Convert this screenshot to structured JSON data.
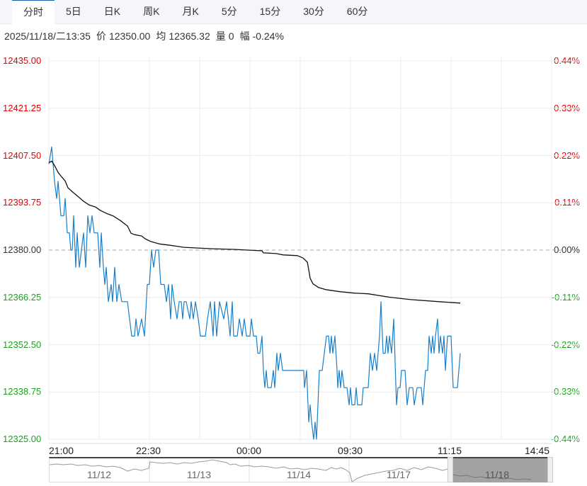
{
  "tabs": [
    {
      "label": "分时",
      "active": true
    },
    {
      "label": "5日"
    },
    {
      "label": "日K"
    },
    {
      "label": "周K"
    },
    {
      "label": "月K"
    },
    {
      "label": "5分"
    },
    {
      "label": "15分"
    },
    {
      "label": "30分"
    },
    {
      "label": "60分"
    }
  ],
  "info": {
    "datetime": "2025/11/18/二13:35",
    "price_label": "价",
    "price": "12350.00",
    "avg_label": "均",
    "avg": "12365.32",
    "vol_label": "量",
    "vol": "0",
    "chg_label": "幅",
    "chg": "-0.24%"
  },
  "colors": {
    "up": "#e60000",
    "down": "#1aa31a",
    "price_line": "#1a7fc9",
    "avg_line": "#111111"
  },
  "chart_data": {
    "type": "line",
    "prev_close": 12380.0,
    "ylim": [
      12325.0,
      12435.0
    ],
    "y_ticks": [
      "12435.00",
      "12421.25",
      "12407.50",
      "12393.75",
      "12380.00",
      "12366.25",
      "12352.50",
      "12338.75",
      "12325.00"
    ],
    "pct_ticks": [
      "0.44%",
      "0.33%",
      "0.22%",
      "0.11%",
      "0.00%",
      "-0.11%",
      "-0.22%",
      "-0.33%",
      "-0.44%"
    ],
    "x_ticks": [
      "21:00",
      "22:30",
      "00:00",
      "09:30",
      "11:15",
      "14:45"
    ],
    "x_domain": [
      0,
      710
    ],
    "series": [
      {
        "name": "价",
        "points": [
          [
            0,
            12405
          ],
          [
            4,
            12410
          ],
          [
            6,
            12405
          ],
          [
            8,
            12400
          ],
          [
            11,
            12395
          ],
          [
            13,
            12400
          ],
          [
            15,
            12395
          ],
          [
            17,
            12390
          ],
          [
            21,
            12390
          ],
          [
            23,
            12395
          ],
          [
            26,
            12385
          ],
          [
            29,
            12385
          ],
          [
            31,
            12380
          ],
          [
            33,
            12380
          ],
          [
            35,
            12390
          ],
          [
            38,
            12375
          ],
          [
            40,
            12385
          ],
          [
            43,
            12375
          ],
          [
            46,
            12380
          ],
          [
            49,
            12385
          ],
          [
            52,
            12375
          ],
          [
            55,
            12390
          ],
          [
            58,
            12385
          ],
          [
            61,
            12390
          ],
          [
            64,
            12385
          ],
          [
            69,
            12385
          ],
          [
            72,
            12375
          ],
          [
            74,
            12385
          ],
          [
            77,
            12375
          ],
          [
            79,
            12370
          ],
          [
            81,
            12375
          ],
          [
            84,
            12365
          ],
          [
            88,
            12370
          ],
          [
            90,
            12365
          ],
          [
            93,
            12375
          ],
          [
            96,
            12365
          ],
          [
            99,
            12370
          ],
          [
            103,
            12365
          ],
          [
            111,
            12365
          ],
          [
            114,
            12360
          ],
          [
            117,
            12355
          ],
          [
            121,
            12355
          ],
          [
            123,
            12360
          ],
          [
            126,
            12355
          ],
          [
            131,
            12360
          ],
          [
            135,
            12355
          ],
          [
            139,
            12370
          ],
          [
            142,
            12370
          ],
          [
            145,
            12380
          ],
          [
            148,
            12375
          ],
          [
            151,
            12380
          ],
          [
            155,
            12380
          ],
          [
            158,
            12370
          ],
          [
            163,
            12370
          ],
          [
            166,
            12365
          ],
          [
            169,
            12370
          ],
          [
            172,
            12360
          ],
          [
            174,
            12370
          ],
          [
            177,
            12365
          ],
          [
            181,
            12360
          ],
          [
            184,
            12365
          ],
          [
            187,
            12365
          ],
          [
            189,
            12360
          ],
          [
            191,
            12365
          ],
          [
            194,
            12365
          ],
          [
            199,
            12360
          ],
          [
            201,
            12365
          ],
          [
            204,
            12360
          ],
          [
            207,
            12365
          ],
          [
            211,
            12360
          ],
          [
            214,
            12355
          ],
          [
            221,
            12355
          ],
          [
            224,
            12360
          ],
          [
            228,
            12365
          ],
          [
            232,
            12355
          ],
          [
            234,
            12365
          ],
          [
            237,
            12355
          ],
          [
            241,
            12365
          ],
          [
            247,
            12360
          ],
          [
            251,
            12365
          ],
          [
            256,
            12355
          ],
          [
            259,
            12365
          ],
          [
            261,
            12355
          ],
          [
            266,
            12355
          ],
          [
            269,
            12360
          ],
          [
            273,
            12355
          ],
          [
            276,
            12360
          ],
          [
            279,
            12355
          ],
          [
            284,
            12355
          ],
          [
            286,
            12360
          ],
          [
            289,
            12355
          ],
          [
            293,
            12355
          ],
          [
            295,
            12350
          ],
          [
            298,
            12350
          ],
          [
            301,
            12355
          ],
          [
            303,
            12345
          ],
          [
            305,
            12340
          ],
          [
            307,
            12345
          ],
          [
            309,
            12340
          ],
          [
            314,
            12340
          ],
          [
            317,
            12345
          ],
          [
            319,
            12340
          ],
          [
            322,
            12350
          ],
          [
            324,
            12345
          ],
          [
            327,
            12350
          ],
          [
            330,
            12345
          ],
          [
            334,
            12345
          ],
          [
            360,
            12345
          ],
          [
            361,
            12340
          ],
          [
            364,
            12345
          ],
          [
            367,
            12330
          ],
          [
            369,
            12335
          ],
          [
            371,
            12330
          ],
          [
            374,
            12325
          ],
          [
            376,
            12330
          ],
          [
            378,
            12325
          ],
          [
            380,
            12335
          ],
          [
            382,
            12345
          ],
          [
            386,
            12345
          ],
          [
            389,
            12350
          ],
          [
            392,
            12355
          ],
          [
            395,
            12355
          ],
          [
            397,
            12350
          ],
          [
            399,
            12355
          ],
          [
            401,
            12350
          ],
          [
            404,
            12355
          ],
          [
            407,
            12345
          ],
          [
            408,
            12340
          ],
          [
            410,
            12345
          ],
          [
            412,
            12340
          ],
          [
            414,
            12345
          ],
          [
            417,
            12340
          ],
          [
            421,
            12340
          ],
          [
            424,
            12335
          ],
          [
            426,
            12340
          ],
          [
            428,
            12335
          ],
          [
            432,
            12335
          ],
          [
            434,
            12340
          ],
          [
            436,
            12335
          ],
          [
            442,
            12335
          ],
          [
            444,
            12340
          ],
          [
            451,
            12340
          ],
          [
            454,
            12350
          ],
          [
            457,
            12345
          ],
          [
            460,
            12350
          ],
          [
            463,
            12345
          ],
          [
            467,
            12355
          ],
          [
            469,
            12365
          ],
          [
            472,
            12350
          ],
          [
            475,
            12350
          ],
          [
            477,
            12355
          ],
          [
            479,
            12350
          ],
          [
            481,
            12355
          ],
          [
            484,
            12350
          ],
          [
            487,
            12360
          ],
          [
            491,
            12335
          ],
          [
            493,
            12340
          ],
          [
            496,
            12340
          ],
          [
            498,
            12345
          ],
          [
            503,
            12345
          ],
          [
            506,
            12335
          ],
          [
            509,
            12340
          ],
          [
            514,
            12340
          ],
          [
            516,
            12335
          ],
          [
            520,
            12340
          ],
          [
            526,
            12340
          ],
          [
            528,
            12335
          ],
          [
            530,
            12340
          ],
          [
            532,
            12345
          ],
          [
            535,
            12345
          ],
          [
            537,
            12355
          ],
          [
            540,
            12350
          ],
          [
            542,
            12355
          ],
          [
            544,
            12350
          ],
          [
            546,
            12355
          ],
          [
            549,
            12360
          ],
          [
            551,
            12350
          ],
          [
            553,
            12355
          ],
          [
            556,
            12350
          ],
          [
            558,
            12355
          ],
          [
            560,
            12345
          ],
          [
            563,
            12355
          ],
          [
            568,
            12355
          ],
          [
            571,
            12340
          ],
          [
            577,
            12340
          ],
          [
            581,
            12350
          ]
        ]
      },
      {
        "name": "均",
        "points": [
          [
            0,
            12405.4
          ],
          [
            4,
            12405.9
          ],
          [
            8,
            12404.6
          ],
          [
            13,
            12402.6
          ],
          [
            18,
            12401.3
          ],
          [
            23,
            12400.1
          ],
          [
            27,
            12398.1
          ],
          [
            34,
            12396.8
          ],
          [
            41,
            12395.6
          ],
          [
            49,
            12394.2
          ],
          [
            57,
            12393.1
          ],
          [
            66,
            12392.5
          ],
          [
            73,
            12391.5
          ],
          [
            81,
            12390.7
          ],
          [
            91,
            12389.9
          ],
          [
            101,
            12388.6
          ],
          [
            111,
            12387.0
          ],
          [
            116,
            12384.9
          ],
          [
            121,
            12384.5
          ],
          [
            131,
            12384.1
          ],
          [
            136,
            12383.3
          ],
          [
            144,
            12382.5
          ],
          [
            156,
            12381.8
          ],
          [
            171,
            12381.4
          ],
          [
            191,
            12380.8
          ],
          [
            211,
            12380.6
          ],
          [
            231,
            12380.4
          ],
          [
            261,
            12380.2
          ],
          [
            281,
            12380.0
          ],
          [
            301,
            12379.8
          ],
          [
            303,
            12379.2
          ],
          [
            321,
            12379.0
          ],
          [
            331,
            12378.6
          ],
          [
            351,
            12378.4
          ],
          [
            359,
            12377.7
          ],
          [
            365,
            12376.5
          ],
          [
            367,
            12374.3
          ],
          [
            369,
            12371.8
          ],
          [
            373,
            12370.2
          ],
          [
            381,
            12369.1
          ],
          [
            391,
            12368.5
          ],
          [
            411,
            12367.9
          ],
          [
            431,
            12367.5
          ],
          [
            451,
            12367.3
          ],
          [
            481,
            12366.3
          ],
          [
            511,
            12365.6
          ],
          [
            551,
            12365.0
          ],
          [
            581,
            12364.6
          ]
        ]
      }
    ]
  },
  "navigator": {
    "dates": [
      "11/12",
      "11/13",
      "11/14",
      "11/17",
      "11/18"
    ]
  }
}
